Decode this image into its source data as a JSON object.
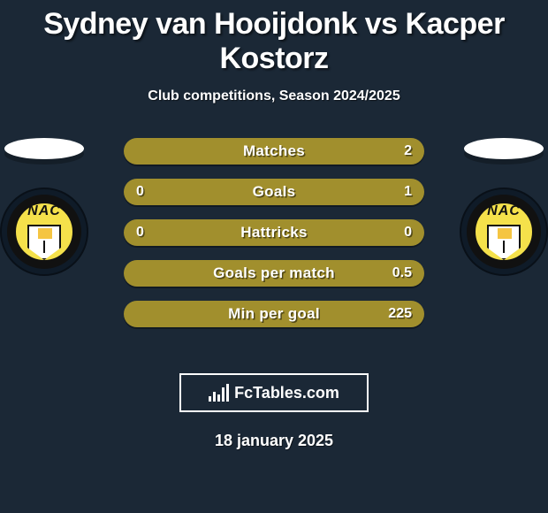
{
  "background_color": "#1b2836",
  "title": "Sydney van Hooijdonk vs Kacper Kostorz",
  "title_fontsize": 34,
  "subtitle": "Club competitions, Season 2024/2025",
  "date": "18 january 2025",
  "brand": "FcTables.com",
  "colors": {
    "player1": "#a18f2d",
    "player2": "#a18f2d",
    "text": "#ffffff"
  },
  "players": {
    "left": {
      "name": "Sydney van Hooijdonk",
      "club_badge": "NAC",
      "logo_bg": "#0f1b28"
    },
    "right": {
      "name": "Kacper Kostorz",
      "club_badge": "NAC",
      "logo_bg": "#0f1b28"
    }
  },
  "rows": [
    {
      "label": "Matches",
      "left": "",
      "right": "2",
      "left_pct": 0,
      "right_pct": 100
    },
    {
      "label": "Goals",
      "left": "0",
      "right": "1",
      "left_pct": 0,
      "right_pct": 100
    },
    {
      "label": "Hattricks",
      "left": "0",
      "right": "0",
      "left_pct": 50,
      "right_pct": 50
    },
    {
      "label": "Goals per match",
      "left": "",
      "right": "0.5",
      "left_pct": 0,
      "right_pct": 100
    },
    {
      "label": "Min per goal",
      "left": "",
      "right": "225",
      "left_pct": 0,
      "right_pct": 100
    }
  ]
}
